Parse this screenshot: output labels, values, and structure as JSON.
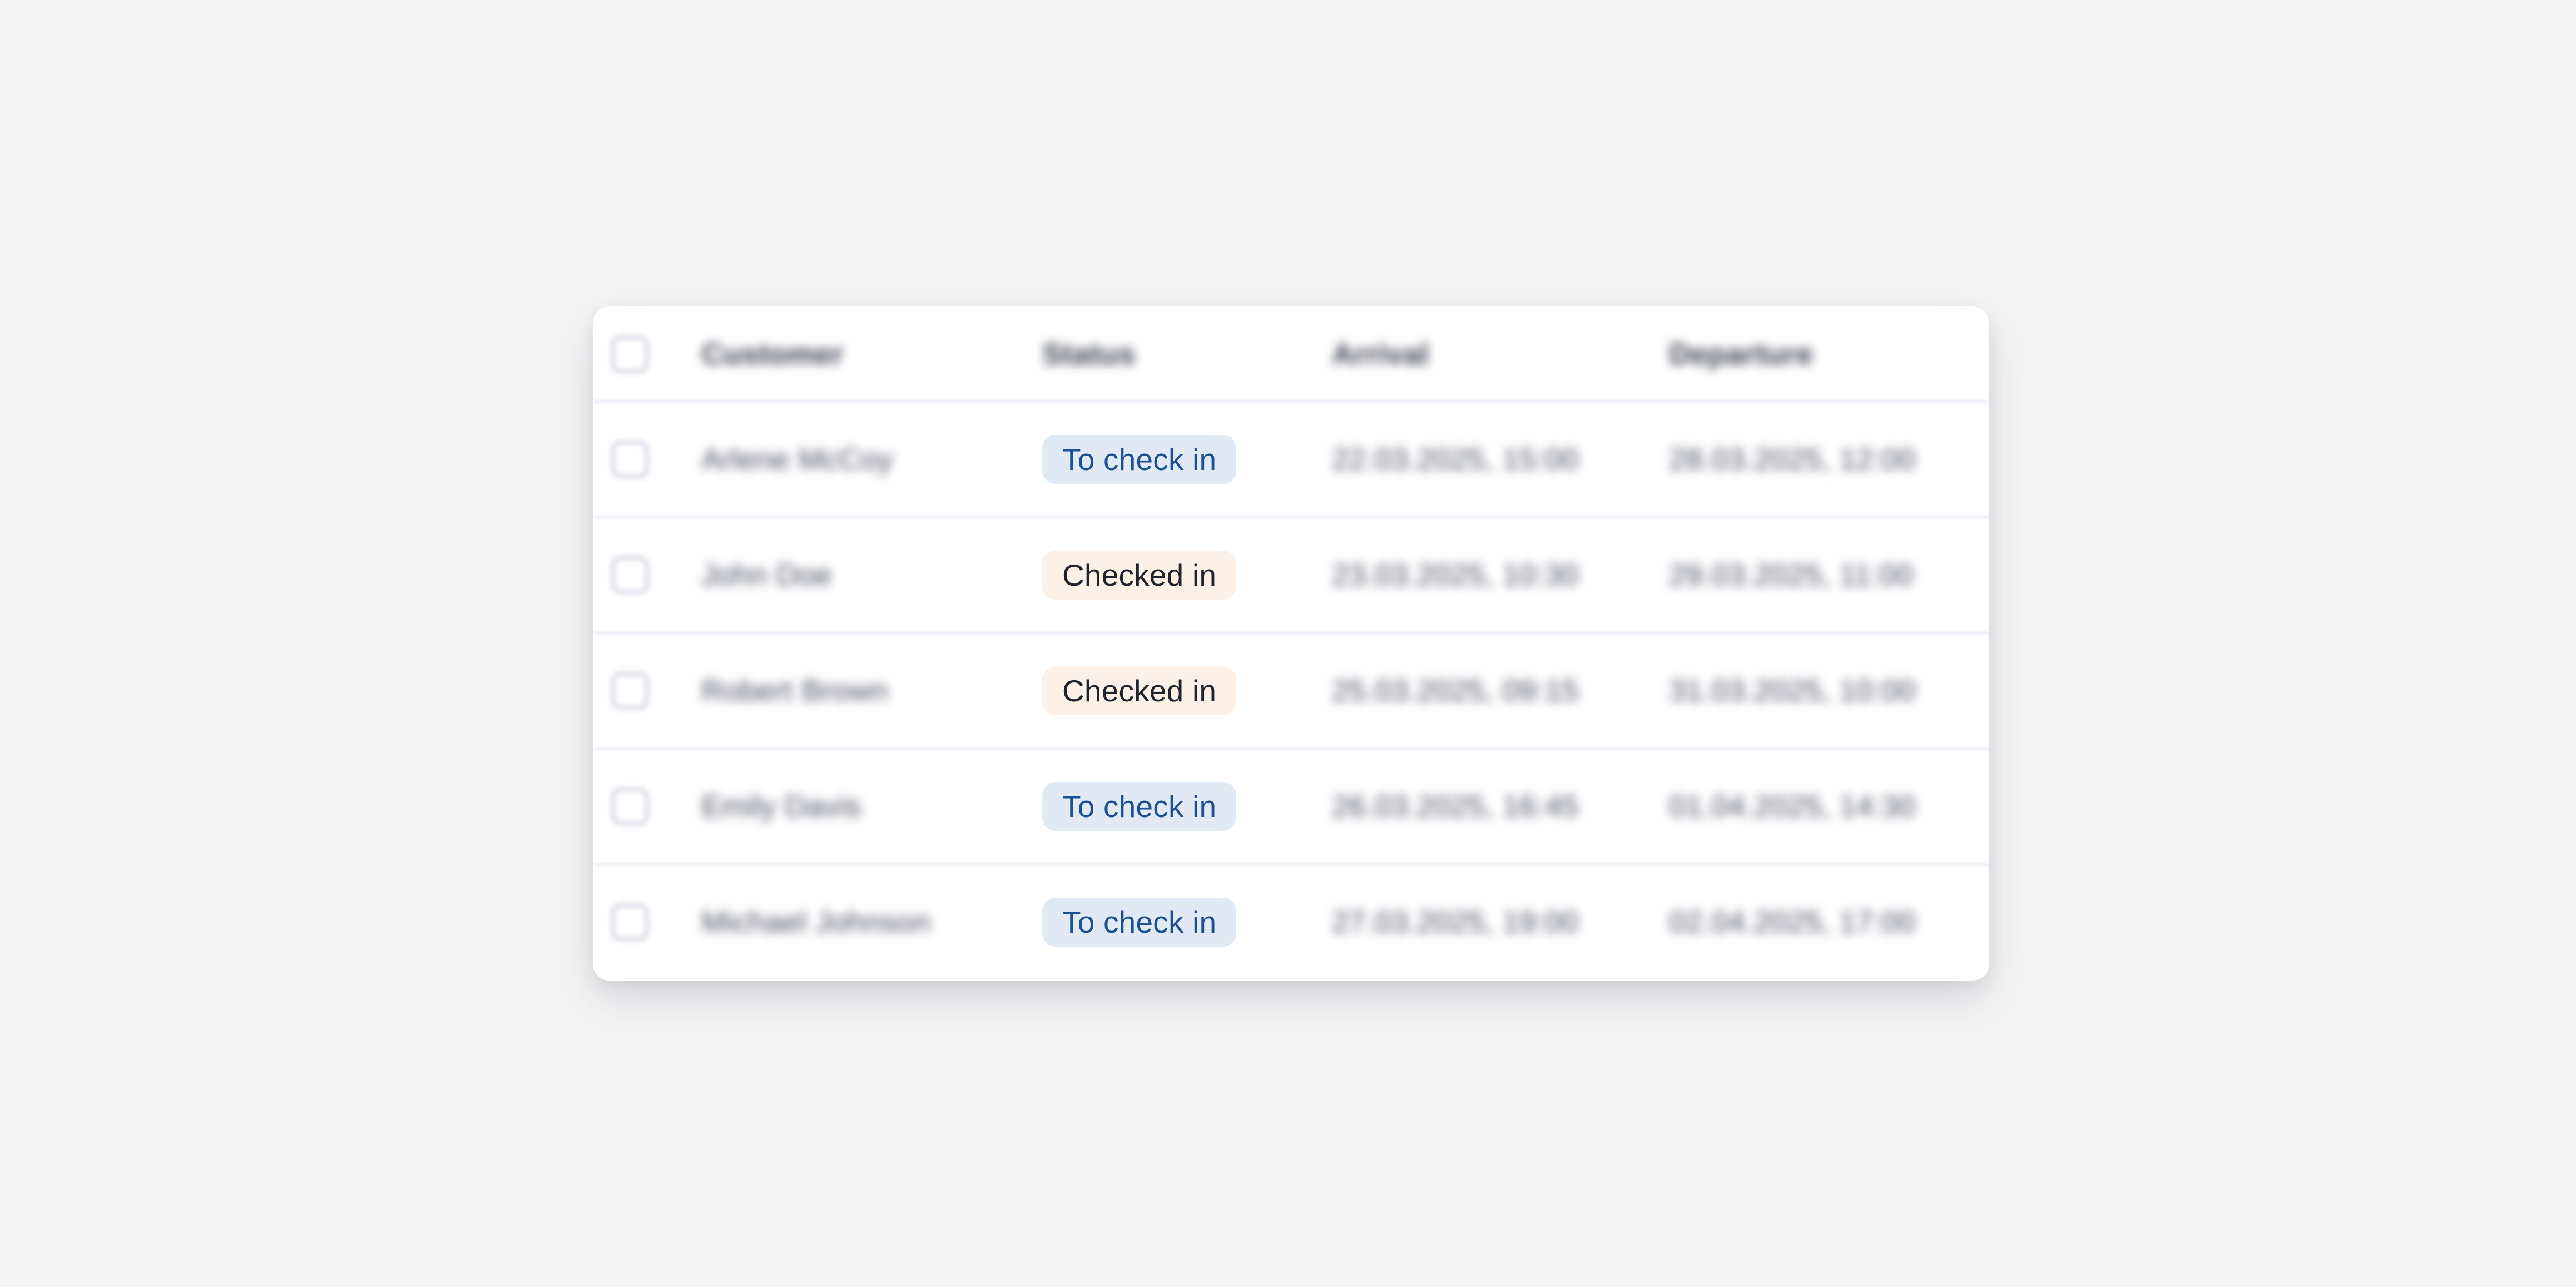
{
  "page": {
    "background_color": "#f5f5f6",
    "card_color": "#ffffff"
  },
  "table": {
    "columns": [
      {
        "key": "customer",
        "label": "Customer"
      },
      {
        "key": "status",
        "label": "Status"
      },
      {
        "key": "arrival",
        "label": "Arrival"
      },
      {
        "key": "departure",
        "label": "Departure"
      }
    ],
    "select_all_checked": false,
    "status_styles": {
      "to-check-in": {
        "bg": "#e1eaf4",
        "text": "#1d5091",
        "label": "To check in"
      },
      "checked-in": {
        "bg": "#fdf0e7",
        "text": "#20232e",
        "label": "Checked in"
      }
    },
    "rows": [
      {
        "customer": "Arlene McCoy",
        "status": "To check in",
        "status_key": "to-check-in",
        "arrival": "22.03.2025, 15:00",
        "departure": "28.03.2025, 12:00",
        "checked": false
      },
      {
        "customer": "John Doe",
        "status": "Checked in",
        "status_key": "checked-in",
        "arrival": "23.03.2025, 10:30",
        "departure": "29.03.2025, 11:00",
        "checked": false
      },
      {
        "customer": "Robert Brown",
        "status": "Checked in",
        "status_key": "checked-in",
        "arrival": "25.03.2025, 09:15",
        "departure": "31.03.2025, 10:00",
        "checked": false
      },
      {
        "customer": "Emily Davis",
        "status": "To check in",
        "status_key": "to-check-in",
        "arrival": "26.03.2025, 16:45",
        "departure": "01.04.2025, 14:30",
        "checked": false
      },
      {
        "customer": "Michael Johnson",
        "status": "To check in",
        "status_key": "to-check-in",
        "arrival": "27.03.2025, 19:00",
        "departure": "02.04.2025, 17:00",
        "checked": false
      }
    ]
  }
}
